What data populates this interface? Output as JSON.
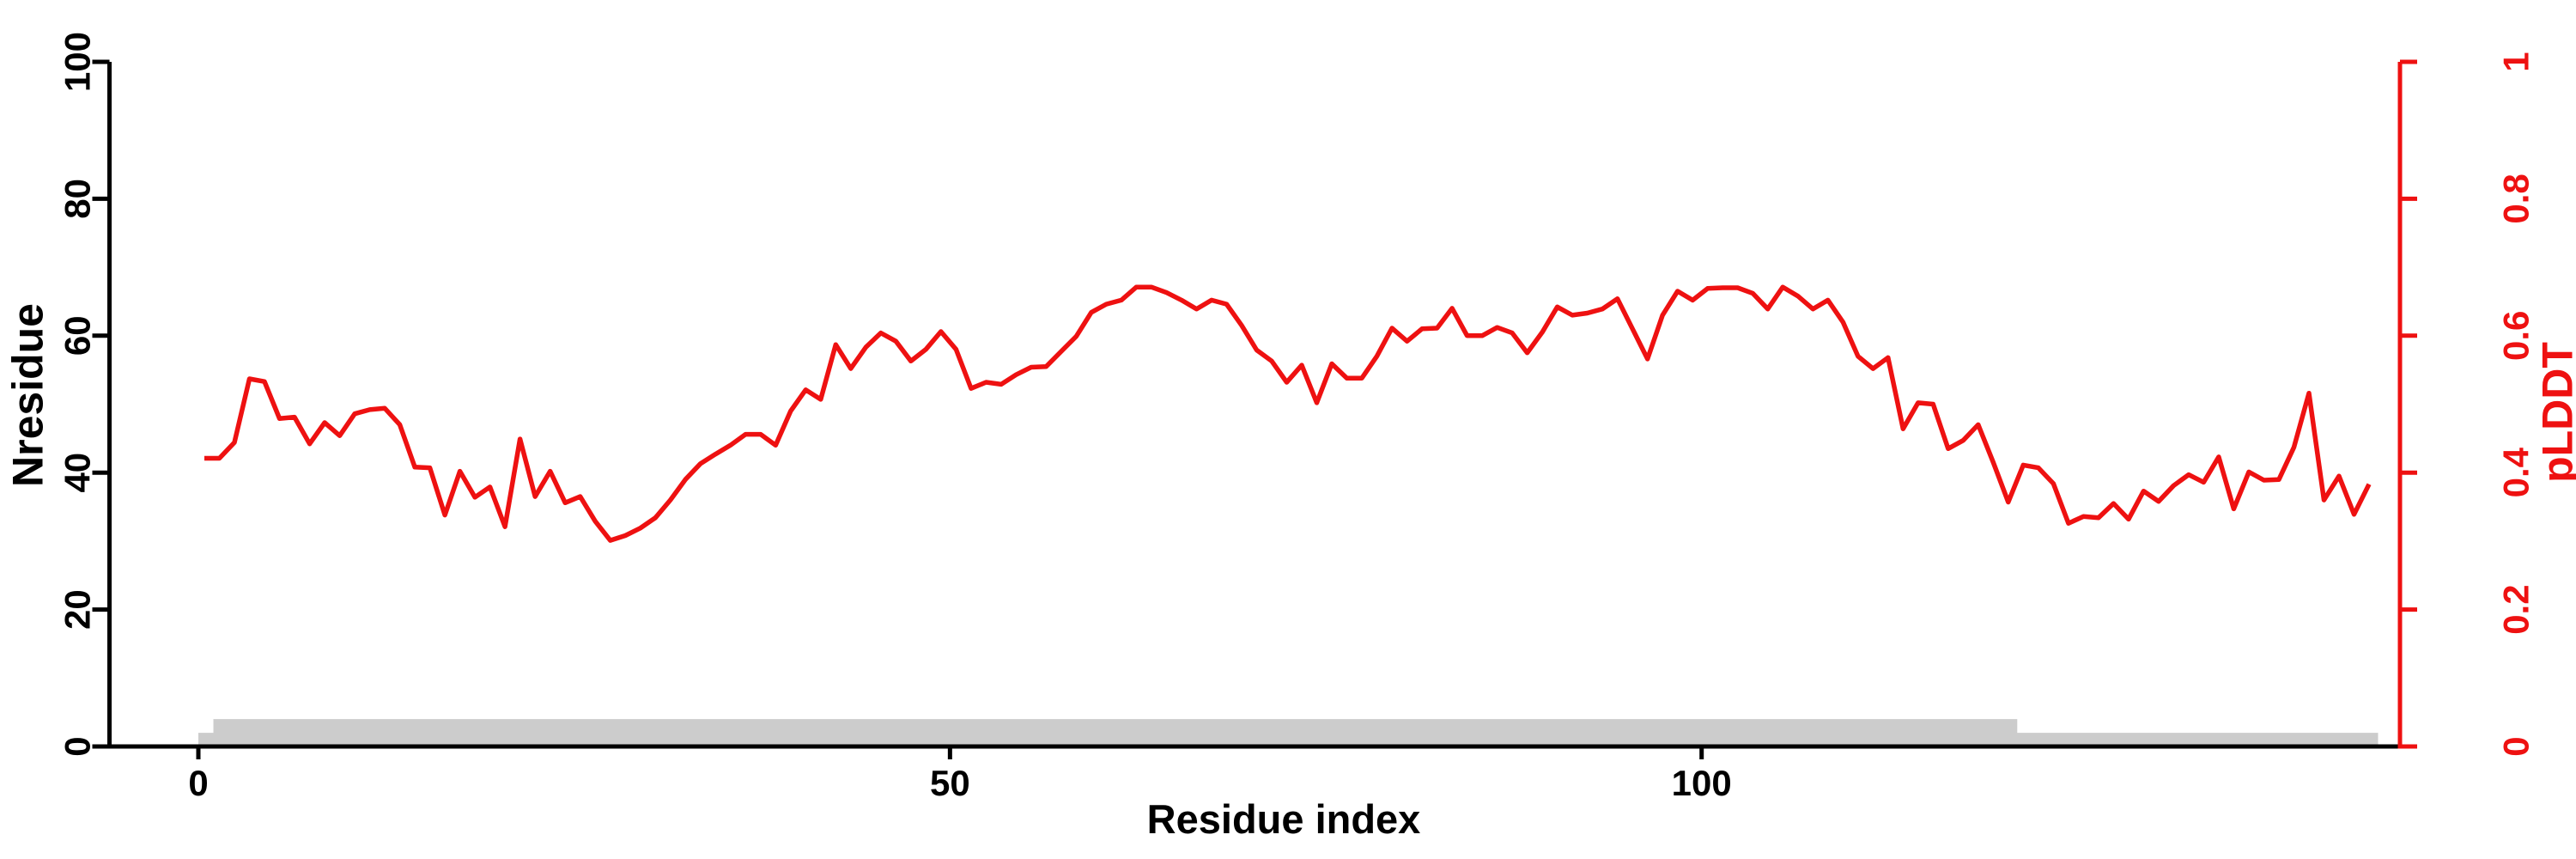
{
  "chart_data": {
    "type": "line",
    "title": "",
    "xlabel": "Residue index",
    "ylabel_left": "Nresidue",
    "ylabel_right": "pLDDT",
    "background": "#ffffff",
    "grid": false,
    "legend": "none",
    "x_axis": {
      "label": "Residue index",
      "ticks": [
        0,
        50,
        100
      ],
      "color": "#000000"
    },
    "y_axis_left": {
      "label": "Nresidue",
      "ticks": [
        0,
        20,
        40,
        60,
        80,
        100
      ],
      "range": [
        0,
        100
      ],
      "color": "#000000"
    },
    "y_axis_right": {
      "label": "pLDDT",
      "ticks": [
        0,
        0.2,
        0.4,
        0.6,
        0.8,
        1
      ],
      "range": [
        0,
        1
      ],
      "color": "#ee1111"
    },
    "series": [
      {
        "name": "pLDDT",
        "type": "line",
        "axis": "right",
        "color": "#ee1111",
        "x_first_residue": 1,
        "x_step": 1,
        "values": [
          0.421,
          0.421,
          0.444,
          0.537,
          0.533,
          0.479,
          0.481,
          0.442,
          0.473,
          0.454,
          0.486,
          0.492,
          0.494,
          0.47,
          0.408,
          0.407,
          0.338,
          0.402,
          0.364,
          0.379,
          0.321,
          0.449,
          0.365,
          0.402,
          0.356,
          0.365,
          0.329,
          0.301,
          0.308,
          0.319,
          0.334,
          0.36,
          0.39,
          0.413,
          0.427,
          0.44,
          0.456,
          0.456,
          0.44,
          0.49,
          0.521,
          0.507,
          0.587,
          0.552,
          0.583,
          0.604,
          0.592,
          0.563,
          0.58,
          0.606,
          0.58,
          0.523,
          0.532,
          0.529,
          0.543,
          0.554,
          0.555,
          0.577,
          0.599,
          0.634,
          0.646,
          0.652,
          0.671,
          0.671,
          0.663,
          0.652,
          0.639,
          0.652,
          0.646,
          0.615,
          0.579,
          0.563,
          0.532,
          0.557,
          0.502,
          0.559,
          0.538,
          0.538,
          0.57,
          0.611,
          0.592,
          0.61,
          0.611,
          0.64,
          0.6,
          0.6,
          0.612,
          0.604,
          0.575,
          0.605,
          0.642,
          0.63,
          0.633,
          0.639,
          0.654,
          0.61,
          0.566,
          0.63,
          0.665,
          0.652,
          0.669,
          0.67,
          0.67,
          0.662,
          0.639,
          0.671,
          0.658,
          0.639,
          0.652,
          0.62,
          0.57,
          0.552,
          0.568,
          0.464,
          0.502,
          0.5,
          0.435,
          0.447,
          0.47,
          0.415,
          0.357,
          0.411,
          0.407,
          0.384,
          0.326,
          0.336,
          0.334,
          0.355,
          0.332,
          0.373,
          0.358,
          0.381,
          0.397,
          0.386,
          0.423,
          0.347,
          0.401,
          0.389,
          0.39,
          0.437,
          0.516,
          0.36,
          0.395,
          0.339,
          0.383
        ]
      },
      {
        "name": "Nresidue",
        "type": "step-area",
        "axis": "left",
        "color": "#cccccc",
        "steps": [
          {
            "x0": 0,
            "x1": 1,
            "y": 2
          },
          {
            "x0": 1,
            "x1": 121,
            "y": 4
          },
          {
            "x0": 121,
            "x1": 145,
            "y": 2
          }
        ]
      }
    ]
  }
}
